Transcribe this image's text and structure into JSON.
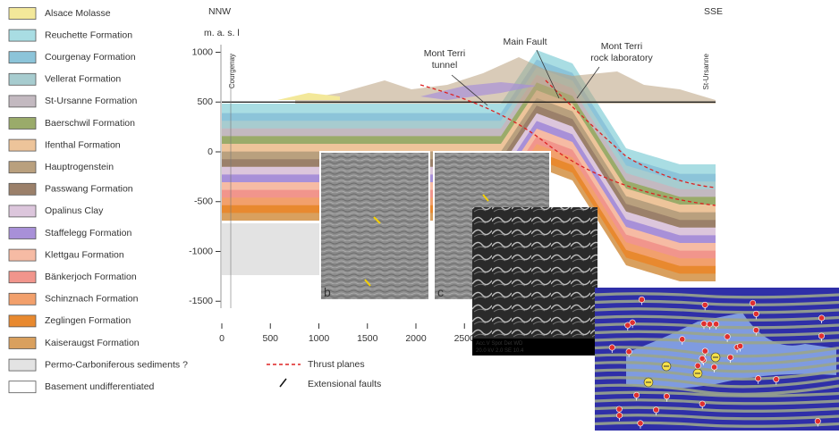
{
  "legend": [
    {
      "label": "Alsace Molasse",
      "color": "#f3e89a"
    },
    {
      "label": "Reuchette Formation",
      "color": "#a9dde3"
    },
    {
      "label": "Courgenay Formation",
      "color": "#8cc4d9"
    },
    {
      "label": "Vellerat Formation",
      "color": "#a7cccf"
    },
    {
      "label": "St-Ursanne Formation",
      "color": "#c3b9c0"
    },
    {
      "label": "Baerschwil Formation",
      "color": "#9aab6a"
    },
    {
      "label": "Ifenthal Formation",
      "color": "#edc49a"
    },
    {
      "label": "Hauptrogenstein",
      "color": "#b9a07e"
    },
    {
      "label": "Passwang Formation",
      "color": "#9b806a"
    },
    {
      "label": "Opalinus Clay",
      "color": "#dcc6dc"
    },
    {
      "label": "Staffelegg Formation",
      "color": "#a890d8"
    },
    {
      "label": "Klettgau Formation",
      "color": "#f6bba4"
    },
    {
      "label": "Bänkerjoch Formation",
      "color": "#f1958c"
    },
    {
      "label": "Schinznach Formation",
      "color": "#f2a06c"
    },
    {
      "label": "Zeglingen Formation",
      "color": "#e8892f"
    },
    {
      "label": "Kaiseraugst Formation",
      "color": "#d9a05e"
    },
    {
      "label": "Permo-Carboniferous sediments ?",
      "color": "#e3e3e3"
    },
    {
      "label": "Basement undifferentiated",
      "color": "#ffffff"
    }
  ],
  "section": {
    "left_label": "NNW",
    "right_label": "SSE",
    "unit_label": "m. a. s. l",
    "left_place": "Courgenay",
    "right_place": "St-Ursanne",
    "yticks": [
      1000,
      500,
      0,
      -500,
      -1000,
      -1500
    ],
    "xticks": [
      0,
      500,
      1000,
      1500,
      2000,
      2500
    ],
    "annotations": [
      {
        "lines": [
          "Mont Terri",
          "tunnel"
        ]
      },
      {
        "lines": [
          "Main Fault"
        ]
      },
      {
        "lines": [
          "Mont Terri",
          "rock laboratory"
        ]
      }
    ]
  },
  "line_legend": [
    "Thrust planes",
    "Extensional faults"
  ],
  "panels": [
    "b",
    "c"
  ],
  "sem_info": [
    "Acc.V  Spot Det  WD",
    "20.0 kV 2.0  SE  10.4"
  ]
}
